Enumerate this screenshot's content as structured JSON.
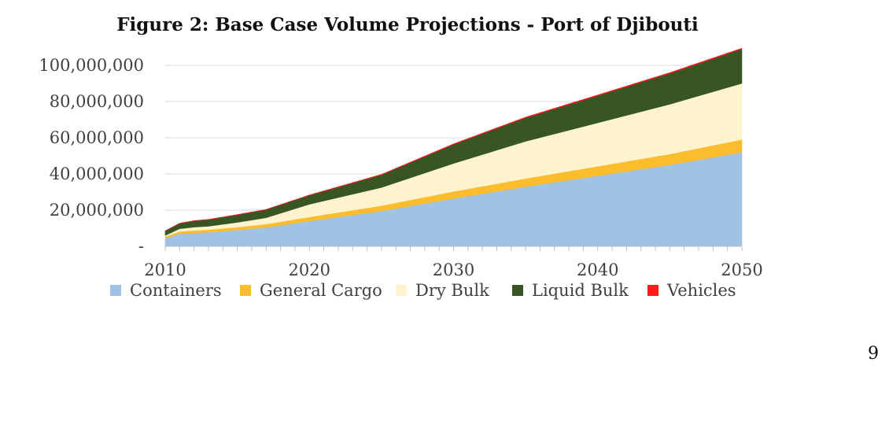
{
  "page": {
    "number": "9"
  },
  "colors": {
    "Containers": "#9fc2e5",
    "General Cargo": "#fbbd2c",
    "Dry Bulk": "#fef3cc",
    "Liquid Bulk": "#375623",
    "Vehicles": "#ff1a1a",
    "grid": "#d9d9d9",
    "axis": "#bfbfbf"
  },
  "chart_data": {
    "type": "area",
    "stacked": true,
    "title": "Figure 2: Base Case Volume Projections - Port of Djibouti",
    "xlabel": "",
    "ylabel": "",
    "x": [
      2010,
      2011,
      2012,
      2013,
      2015,
      2017,
      2020,
      2025,
      2030,
      2035,
      2040,
      2045,
      2050
    ],
    "series": [
      {
        "name": "Containers",
        "values": [
          4500000,
          7000000,
          7500000,
          7800000,
          9000000,
          10500000,
          14000000,
          19500000,
          26500000,
          33000000,
          39000000,
          45000000,
          52000000
        ]
      },
      {
        "name": "General Cargo",
        "values": [
          1000000,
          1200000,
          1300000,
          1400000,
          1600000,
          1800000,
          2200000,
          3000000,
          3800000,
          4500000,
          5200000,
          6000000,
          7000000
        ]
      },
      {
        "name": "Dry Bulk",
        "values": [
          500000,
          1500000,
          1800000,
          1900000,
          2600000,
          3500000,
          7000000,
          10000000,
          15500000,
          20500000,
          24000000,
          27500000,
          31000000
        ]
      },
      {
        "name": "Liquid Bulk",
        "values": [
          2500000,
          3000000,
          3500000,
          3700000,
          4200000,
          4500000,
          5000000,
          7000000,
          10500000,
          13000000,
          15000000,
          17000000,
          19000000
        ]
      },
      {
        "name": "Vehicles",
        "values": [
          100000,
          100000,
          100000,
          100000,
          150000,
          150000,
          200000,
          300000,
          350000,
          400000,
          450000,
          500000,
          500000
        ]
      }
    ],
    "y_ticks": [
      "-",
      "20,000,000",
      "40,000,000",
      "60,000,000",
      "80,000,000",
      "100,000,000"
    ],
    "x_tick_labels": [
      "2010",
      "2020",
      "2030",
      "2040",
      "2050"
    ],
    "ylim": [
      0,
      110000000
    ],
    "xlim": [
      2010,
      2050
    ],
    "grid": true,
    "legend_position": "bottom"
  }
}
